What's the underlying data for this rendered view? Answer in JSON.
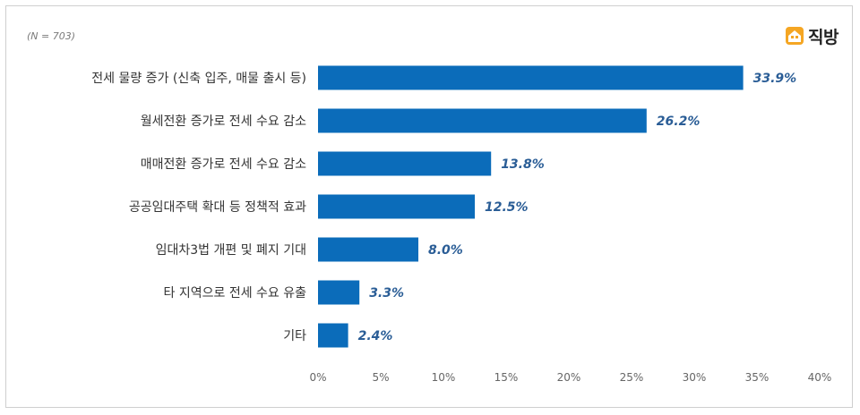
{
  "note": "(N = 703)",
  "logo": {
    "text": "직방",
    "icon": "house-icon",
    "color": "#f5a623"
  },
  "colors": {
    "bar": "#0b6cba",
    "value_label": "#2a5d96",
    "axis_text": "#666666",
    "category_text": "#333333"
  },
  "chart_data": {
    "type": "bar",
    "orientation": "horizontal",
    "title": "",
    "xlabel": "",
    "ylabel": "",
    "categories": [
      "전세 물량 증가 (신축 입주, 매물 출시 등)",
      "월세전환 증가로 전세 수요 감소",
      "매매전환 증가로 전세 수요 감소",
      "공공임대주택 확대 등 정책적 효과",
      "임대차3법 개편 및 폐지 기대",
      "타 지역으로 전세 수요 유출",
      "기타"
    ],
    "values": [
      33.9,
      26.2,
      13.8,
      12.5,
      8.0,
      3.3,
      2.4
    ],
    "value_labels": [
      "33.9%",
      "26.2%",
      "13.8%",
      "12.5%",
      "8.0%",
      "3.3%",
      "2.4%"
    ],
    "xlim": [
      0,
      40
    ],
    "x_ticks": [
      0,
      5,
      10,
      15,
      20,
      25,
      30,
      35,
      40
    ],
    "x_tick_labels": [
      "0%",
      "5%",
      "10%",
      "15%",
      "20%",
      "25%",
      "30%",
      "35%",
      "40%"
    ],
    "grid": false,
    "legend": "none"
  }
}
